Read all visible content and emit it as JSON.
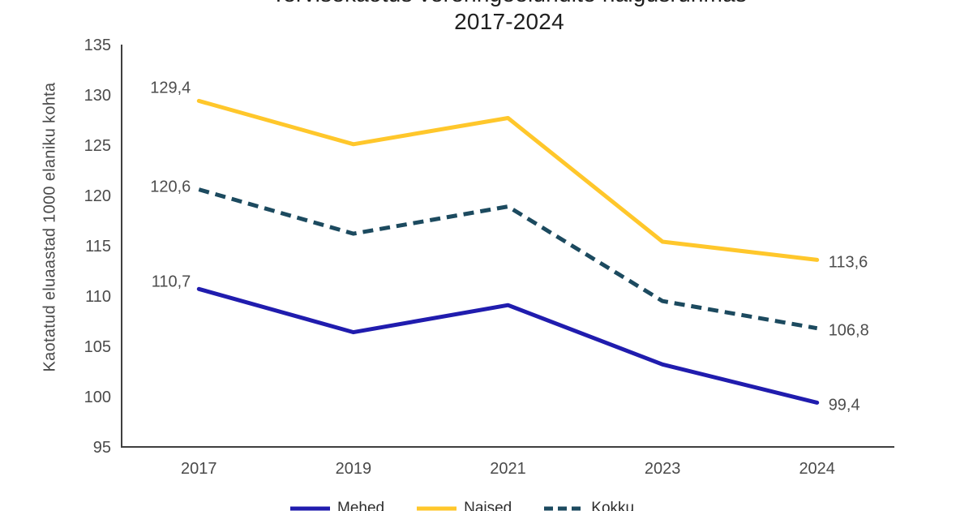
{
  "title": {
    "line1": "Tervisekaotus vereringeelundite haigusrühmas",
    "line2": "2017-2024"
  },
  "chart_data": {
    "type": "line",
    "categories": [
      "2017",
      "2019",
      "2021",
      "2023",
      "2024"
    ],
    "xlabel": "",
    "ylabel": "Kaotatud eluaastad 1000 elaniku kohta",
    "ylim": [
      95,
      135
    ],
    "y_ticks": [
      135,
      130,
      125,
      120,
      115,
      110,
      105,
      100,
      95
    ],
    "grid": false,
    "legend_position": "bottom",
    "series": [
      {
        "name": "Mehed",
        "color": "#201CAE",
        "style": "solid",
        "values": [
          110.7,
          106.4,
          109.1,
          103.2,
          99.4
        ],
        "first_label": "110,7",
        "last_label": "99,4"
      },
      {
        "name": "Naised",
        "color": "#FFC72B",
        "style": "solid",
        "values": [
          129.4,
          125.1,
          127.7,
          115.4,
          113.6
        ],
        "first_label": "129,4",
        "last_label": "113,6"
      },
      {
        "name": "Kokku",
        "color": "#1C4A5F",
        "style": "dashed",
        "values": [
          120.6,
          116.2,
          118.9,
          109.5,
          106.8
        ],
        "first_label": "120,6",
        "last_label": "106,8"
      }
    ]
  },
  "colors": {
    "background": "#ffffff",
    "axis": "#3f3f3f",
    "tick_text": "#4a4a4a",
    "data_label_text": "#4d4d4d",
    "title_text": "#1f1f1f",
    "legend_text": "#2e2e2e"
  }
}
